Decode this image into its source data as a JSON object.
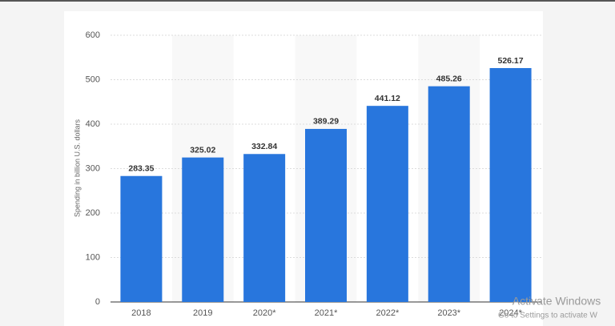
{
  "chart_data": {
    "type": "bar",
    "y_axis_label": "Spending in billion U.S. dollars",
    "categories": [
      "2018",
      "2019",
      "2020*",
      "2021*",
      "2022*",
      "2023*",
      "2024*"
    ],
    "values": [
      283.35,
      325.02,
      332.84,
      389.29,
      441.12,
      485.26,
      526.17
    ],
    "color": "#2876dd",
    "ylim": [
      0,
      600
    ],
    "yticks": [
      0,
      100,
      200,
      300,
      400,
      500,
      600
    ],
    "grid": true
  },
  "overlay": {
    "title": "Activate Windows",
    "subtitle": "Go to Settings to activate W"
  }
}
